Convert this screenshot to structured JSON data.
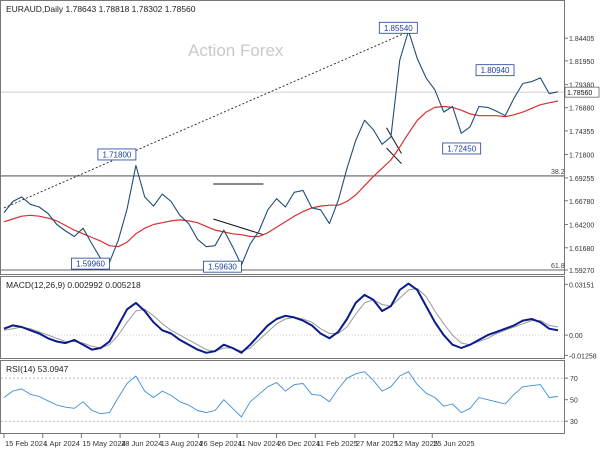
{
  "chart_data": [
    {
      "type": "line",
      "panel": "price",
      "symbol": "EURAUD",
      "timeframe": "Daily",
      "header": "EURAUD,Daily  1.78643 1.78818 1.78302 1.78560",
      "ohlc": {
        "open": 1.78643,
        "high": 1.78818,
        "low": 1.78302,
        "close": 1.7856
      },
      "watermark": "Action Forex",
      "ylim": [
        1.5927,
        1.866
      ],
      "y_ticks": [
        "1.84405",
        "1.81950",
        "1.79380",
        "1.76880",
        "1.74355",
        "1.71800",
        "1.69255",
        "1.66780",
        "1.64200",
        "1.61680",
        "1.59270"
      ],
      "current_price": "1.78560",
      "reference_level": 1.7856,
      "fib_levels": [
        {
          "label": "38.2",
          "value": 1.6947
        },
        {
          "label": "61.8",
          "value": 1.5927
        }
      ],
      "series": [
        {
          "name": "Close",
          "color": "#1f4e79",
          "values": [
            1.655,
            1.667,
            1.672,
            1.664,
            1.661,
            1.654,
            1.642,
            1.635,
            1.629,
            1.638,
            1.621,
            1.605,
            1.601,
            1.625,
            1.659,
            1.706,
            1.672,
            1.662,
            1.675,
            1.667,
            1.652,
            1.643,
            1.626,
            1.618,
            1.619,
            1.636,
            1.618,
            1.598,
            1.621,
            1.635,
            1.658,
            1.67,
            1.661,
            1.677,
            1.679,
            1.66,
            1.658,
            1.643,
            1.668,
            1.703,
            1.733,
            1.755,
            1.745,
            1.729,
            1.737,
            1.82,
            1.852,
            1.822,
            1.801,
            1.788,
            1.764,
            1.77,
            1.741,
            1.748,
            1.77,
            1.769,
            1.765,
            1.76,
            1.779,
            1.795,
            1.797,
            1.801,
            1.784,
            1.786
          ]
        },
        {
          "name": "MA",
          "color": "#d63030",
          "values": [
            1.645,
            1.648,
            1.651,
            1.652,
            1.651,
            1.649,
            1.646,
            1.641,
            1.636,
            1.632,
            1.628,
            1.624,
            1.619,
            1.618,
            1.623,
            1.632,
            1.638,
            1.642,
            1.644,
            1.646,
            1.647,
            1.646,
            1.644,
            1.64,
            1.636,
            1.634,
            1.632,
            1.631,
            1.629,
            1.629,
            1.633,
            1.639,
            1.645,
            1.651,
            1.656,
            1.66,
            1.662,
            1.663,
            1.663,
            1.667,
            1.674,
            1.684,
            1.694,
            1.703,
            1.712,
            1.726,
            1.741,
            1.755,
            1.764,
            1.769,
            1.77,
            1.769,
            1.766,
            1.762,
            1.76,
            1.76,
            1.76,
            1.759,
            1.761,
            1.764,
            1.768,
            1.772,
            1.774,
            1.776
          ]
        }
      ],
      "trendlines": [
        {
          "name": "long-term-trendline",
          "from": [
            0,
            1.66
          ],
          "to": [
            47,
            1.8554
          ]
        },
        {
          "name": "triangle-upper-line",
          "from": [
            23.8,
            1.686
          ],
          "to": [
            29.5,
            1.686
          ]
        },
        {
          "name": "triangle-lower-line",
          "from": [
            23.8,
            1.648
          ],
          "to": [
            29.5,
            1.631
          ]
        },
        {
          "name": "flag-upper-line",
          "from": [
            43.5,
            1.747
          ],
          "to": [
            45.2,
            1.719
          ]
        },
        {
          "name": "flag-lower-line",
          "from": [
            43.5,
            1.725
          ],
          "to": [
            45.2,
            1.708
          ]
        }
      ],
      "annotations": [
        {
          "label": "1.85540",
          "index": 47,
          "value": 1.8554,
          "anchor": "left"
        },
        {
          "label": "1.80940",
          "index": 58,
          "value": 1.8094,
          "anchor": "left"
        },
        {
          "label": "1.72450",
          "index": 50,
          "value": 1.7245,
          "anchor": "right"
        },
        {
          "label": "1.71800",
          "index": 15,
          "value": 1.718,
          "anchor": "left"
        },
        {
          "label": "1.59960",
          "index": 12,
          "value": 1.5996,
          "anchor": "left"
        },
        {
          "label": "1.59630",
          "index": 27,
          "value": 1.5963,
          "anchor": "left"
        }
      ]
    },
    {
      "type": "line",
      "panel": "macd",
      "label": "MACD(12,26,9) 0.002992 0.005218",
      "ylim": [
        -0.013,
        0.033
      ],
      "y_ticks": [
        "0.03151",
        "0.00",
        "-0.01258"
      ],
      "series": [
        {
          "name": "MACD",
          "color": "#0a1a8c",
          "values": [
            0.004,
            0.006,
            0.005,
            0.003,
            0.001,
            -0.002,
            -0.004,
            -0.005,
            -0.003,
            -0.006,
            -0.009,
            -0.008,
            -0.004,
            0.006,
            0.016,
            0.02,
            0.015,
            0.008,
            0.003,
            0.001,
            -0.003,
            -0.006,
            -0.009,
            -0.011,
            -0.01,
            -0.006,
            -0.008,
            -0.011,
            -0.006,
            0.0,
            0.006,
            0.01,
            0.012,
            0.011,
            0.009,
            0.006,
            0.001,
            -0.002,
            0.002,
            0.01,
            0.02,
            0.025,
            0.022,
            0.015,
            0.018,
            0.028,
            0.032,
            0.028,
            0.018,
            0.008,
            0.0,
            -0.006,
            -0.008,
            -0.006,
            -0.003,
            0.0,
            0.002,
            0.004,
            0.006,
            0.009,
            0.01,
            0.008,
            0.004,
            0.003
          ]
        },
        {
          "name": "Signal",
          "color": "#9a9a9a",
          "values": [
            0.003,
            0.004,
            0.005,
            0.004,
            0.002,
            0.0,
            -0.002,
            -0.004,
            -0.004,
            -0.005,
            -0.007,
            -0.008,
            -0.006,
            0.0,
            0.008,
            0.015,
            0.016,
            0.012,
            0.007,
            0.003,
            0.0,
            -0.003,
            -0.006,
            -0.009,
            -0.01,
            -0.008,
            -0.008,
            -0.01,
            -0.008,
            -0.003,
            0.002,
            0.007,
            0.01,
            0.011,
            0.01,
            0.008,
            0.004,
            0.001,
            0.001,
            0.005,
            0.013,
            0.02,
            0.022,
            0.019,
            0.018,
            0.023,
            0.028,
            0.029,
            0.024,
            0.015,
            0.007,
            0.0,
            -0.005,
            -0.006,
            -0.004,
            -0.002,
            0.001,
            0.003,
            0.005,
            0.007,
            0.009,
            0.009,
            0.006,
            0.005
          ]
        }
      ]
    },
    {
      "type": "line",
      "panel": "rsi",
      "label": "RSI(14) 53.0947",
      "ylim": [
        20,
        85
      ],
      "y_ticks": [
        "70",
        "50",
        "30"
      ],
      "levels": [
        70,
        30
      ],
      "series": [
        {
          "name": "RSI",
          "color": "#3d8fd6",
          "values": [
            52,
            58,
            60,
            55,
            53,
            49,
            45,
            43,
            42,
            48,
            40,
            37,
            38,
            52,
            65,
            72,
            58,
            52,
            58,
            54,
            48,
            45,
            40,
            38,
            40,
            50,
            42,
            34,
            48,
            55,
            62,
            66,
            58,
            64,
            65,
            55,
            54,
            48,
            60,
            70,
            74,
            76,
            68,
            58,
            62,
            72,
            76,
            64,
            56,
            52,
            44,
            46,
            38,
            42,
            52,
            50,
            48,
            46,
            55,
            62,
            63,
            64,
            52,
            53
          ]
        }
      ]
    }
  ],
  "x_labels": [
    {
      "label": "15 Feb 2024",
      "index": 0
    },
    {
      "label": "1 Apr 2024",
      "index": 4.4
    },
    {
      "label": "15 May 2024",
      "index": 8.8
    },
    {
      "label": "28 Jun 2024",
      "index": 13.2
    },
    {
      "label": "13 Aug 2024",
      "index": 17.7
    },
    {
      "label": "26 Sep 2024",
      "index": 22.1
    },
    {
      "label": "11 Nov 2024",
      "index": 26.5
    },
    {
      "label": "26 Dec 2024",
      "index": 31.0
    },
    {
      "label": "11 Feb 2025",
      "index": 35.4
    },
    {
      "label": "27 Mar 2025",
      "index": 39.9
    },
    {
      "label": "12 May 2025",
      "index": 44.3
    },
    {
      "label": "25 Jun 2025",
      "index": 48.7
    }
  ]
}
